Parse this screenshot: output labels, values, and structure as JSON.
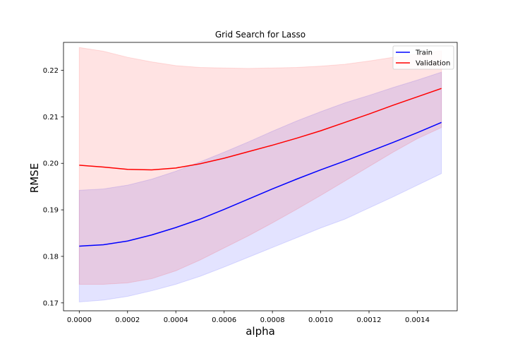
{
  "chart_data": {
    "type": "line",
    "title": "Grid Search for Lasso",
    "xlabel": "alpha",
    "ylabel": "RMSE",
    "xlim": [
      -6.52e-05,
      0.0015652
    ],
    "ylim": [
      0.1683,
      0.226
    ],
    "xticks": [
      0.0,
      0.0002,
      0.0004,
      0.0006,
      0.0008,
      0.001,
      0.0012,
      0.0014
    ],
    "xtick_labels": [
      "0.0000",
      "0.0002",
      "0.0004",
      "0.0006",
      "0.0008",
      "0.0010",
      "0.0012",
      "0.0014"
    ],
    "yticks": [
      0.17,
      0.18,
      0.19,
      0.2,
      0.21,
      0.22
    ],
    "ytick_labels": [
      "0.17",
      "0.18",
      "0.19",
      "0.20",
      "0.21",
      "0.22"
    ],
    "grid": false,
    "legend": {
      "placement": "top-right",
      "entries": [
        "Train",
        "Validation"
      ]
    },
    "x": [
      0.0,
      0.0001,
      0.0002,
      0.0003,
      0.0004,
      0.0005,
      0.0006,
      0.0007,
      0.0008,
      0.0009,
      0.001,
      0.0011,
      0.0012,
      0.0013,
      0.0014,
      0.0015
    ],
    "series": [
      {
        "name": "Train",
        "color": "#0000ff",
        "fill_color": "#0000ff",
        "values": [
          0.1822,
          0.1825,
          0.1833,
          0.1846,
          0.1862,
          0.188,
          0.1901,
          0.1923,
          0.1945,
          0.1966,
          0.1986,
          0.2005,
          0.2025,
          0.2045,
          0.2066,
          0.2088
        ],
        "lower": [
          0.1702,
          0.1706,
          0.1714,
          0.1726,
          0.174,
          0.1757,
          0.1777,
          0.1798,
          0.1819,
          0.184,
          0.1861,
          0.188,
          0.1904,
          0.1928,
          0.1953,
          0.1978
        ],
        "upper": [
          0.1942,
          0.1945,
          0.1953,
          0.1966,
          0.1983,
          0.2003,
          0.2024,
          0.2046,
          0.2069,
          0.2091,
          0.2111,
          0.213,
          0.2146,
          0.2163,
          0.2179,
          0.2196
        ]
      },
      {
        "name": "Validation",
        "color": "#ff0000",
        "fill_color": "#ff0000",
        "values": [
          0.1996,
          0.1992,
          0.1987,
          0.1986,
          0.199,
          0.1999,
          0.2011,
          0.2025,
          0.2039,
          0.2054,
          0.207,
          0.2088,
          0.2106,
          0.2125,
          0.2143,
          0.2161
        ],
        "lower": [
          0.174,
          0.174,
          0.1743,
          0.1752,
          0.1769,
          0.1792,
          0.1818,
          0.1844,
          0.1872,
          0.1901,
          0.1931,
          0.1962,
          0.1993,
          0.2024,
          0.2053,
          0.2077
        ],
        "upper": [
          0.2249,
          0.2241,
          0.2228,
          0.2218,
          0.221,
          0.2206,
          0.2205,
          0.2204,
          0.2205,
          0.2206,
          0.2209,
          0.2213,
          0.222,
          0.2228,
          0.2235,
          0.2242
        ]
      }
    ]
  }
}
